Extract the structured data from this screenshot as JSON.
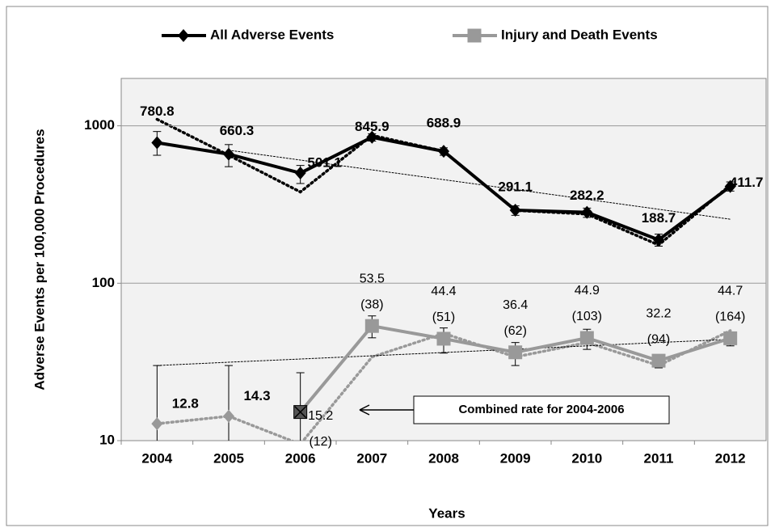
{
  "chart_data": {
    "type": "line",
    "y_label": "Adverse Events per 100,000 Procedures",
    "x_label": "Years",
    "annotation": "Combined rate for 2004-2006",
    "categories": [
      "2004",
      "2005",
      "2006",
      "2007",
      "2008",
      "2009",
      "2010",
      "2011",
      "2012"
    ],
    "log_scale": true,
    "grid": true,
    "legend": "top",
    "ylim": [
      10,
      2000
    ],
    "yticks": [
      10,
      100,
      1000
    ],
    "series": [
      {
        "name": "All Adverse Events",
        "color": "#000000",
        "marker": "diamond",
        "values": [
          780.8,
          660.3,
          501.1,
          845.9,
          688.9,
          291.1,
          282.2,
          188.7,
          411.7
        ],
        "lower": [
          650,
          550,
          430,
          800,
          650,
          270,
          262,
          172,
          385
        ],
        "upper": [
          920,
          760,
          560,
          890,
          725,
          310,
          300,
          205,
          440
        ]
      },
      {
        "name": "Injury and Death Events",
        "color": "#999999",
        "marker": "square",
        "values": [
          null,
          null,
          15.2,
          53.5,
          44.4,
          36.4,
          44.9,
          32.2,
          44.7
        ],
        "value_labels": [
          null,
          null,
          [
            "15.2",
            "(12)"
          ],
          [
            "53.5",
            "(38)"
          ],
          [
            "44.4",
            "(51)"
          ],
          [
            "36.4",
            "(62)"
          ],
          [
            "44.9",
            "(103)"
          ],
          [
            "32.2",
            "(94)"
          ],
          [
            "44.7",
            "(164)"
          ]
        ],
        "lower": [
          null,
          null,
          8,
          45,
          36,
          30,
          38,
          29,
          40
        ],
        "upper": [
          null,
          null,
          27,
          62,
          52,
          42,
          51,
          35,
          49
        ]
      },
      {
        "color": "#999999",
        "marker": "diamond",
        "line": "none",
        "values": [
          12.8,
          14.3,
          null,
          null,
          null,
          null,
          null,
          null,
          null
        ],
        "lower": [
          8,
          8,
          null,
          null,
          null,
          null,
          null,
          null,
          null
        ],
        "upper": [
          30,
          30,
          null,
          null,
          null,
          null,
          null,
          null,
          null
        ]
      },
      {
        "color": "#000000",
        "line": "dotted",
        "values": [
          1100,
          650,
          380,
          870,
          690,
          290,
          275,
          175,
          420
        ]
      },
      {
        "color": "#999999",
        "line": "dotted",
        "values": [
          12.8,
          14.3,
          9.5,
          34,
          48,
          34,
          42,
          30,
          50
        ]
      },
      {
        "color": "#000000",
        "line": "trend",
        "values": [
          null,
          700,
          606,
          525,
          455,
          394,
          341,
          295,
          255
        ]
      },
      {
        "color": "#000000",
        "line": "trend",
        "values": [
          30,
          31.5,
          33,
          34.6,
          36.3,
          38.1,
          40,
          42,
          44
        ]
      }
    ]
  }
}
